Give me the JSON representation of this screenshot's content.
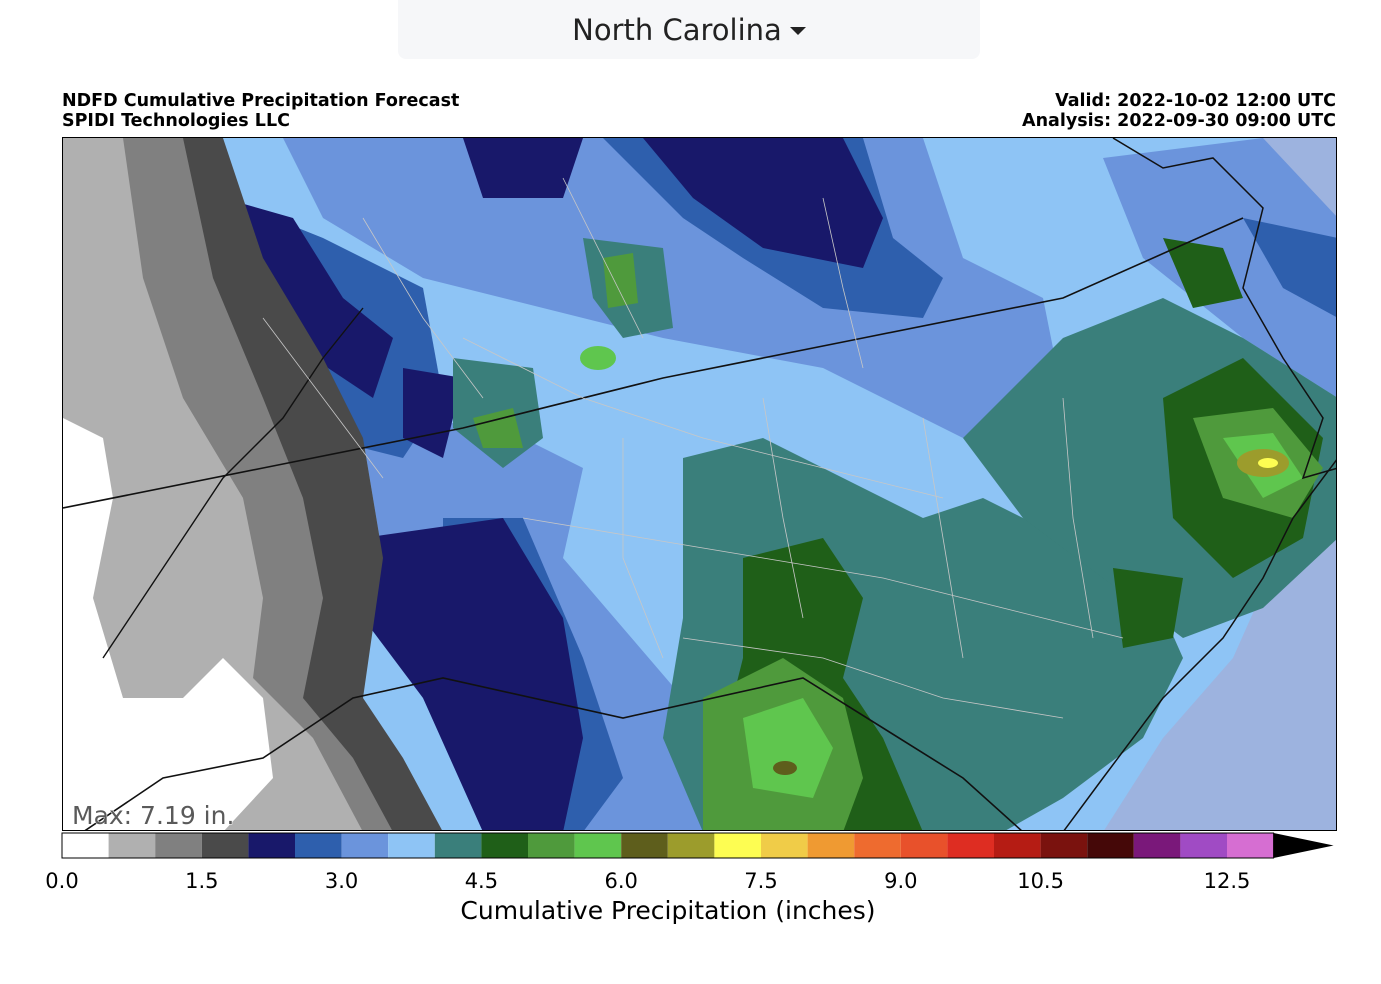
{
  "region_selector": {
    "label": "North Carolina",
    "icon": "caret-down-icon"
  },
  "header": {
    "title": "NDFD Cumulative Precipitation Forecast",
    "org": "SPIDI Technologies LLC",
    "valid": "Valid: 2022-10-02 12:00 UTC",
    "analysis": "Analysis: 2022-09-30 09:00 UTC"
  },
  "map": {
    "max_label": "Max: 7.19 in."
  },
  "colorbar": {
    "label": "Cumulative Precipitation (inches)",
    "ticks": [
      "0.0",
      "1.5",
      "3.0",
      "4.5",
      "6.0",
      "7.5",
      "9.0",
      "10.5",
      "12.5"
    ],
    "colors": [
      "#ffffff",
      "#b0b0b0",
      "#808080",
      "#4a4a4a",
      "#18186a",
      "#2e5fad",
      "#6b94dc",
      "#8ec4f5",
      "#3a7f7b",
      "#1f5f18",
      "#4f9a3c",
      "#5fc64e",
      "#5e5e1c",
      "#9c9c2c",
      "#fdfd52",
      "#f0cc48",
      "#ef9a32",
      "#ee6b2f",
      "#e8512b",
      "#de2d22",
      "#b51c14",
      "#7a120e",
      "#450808",
      "#7a187a",
      "#a04bc4",
      "#d66ed2"
    ],
    "extend_color": "#000000"
  }
}
